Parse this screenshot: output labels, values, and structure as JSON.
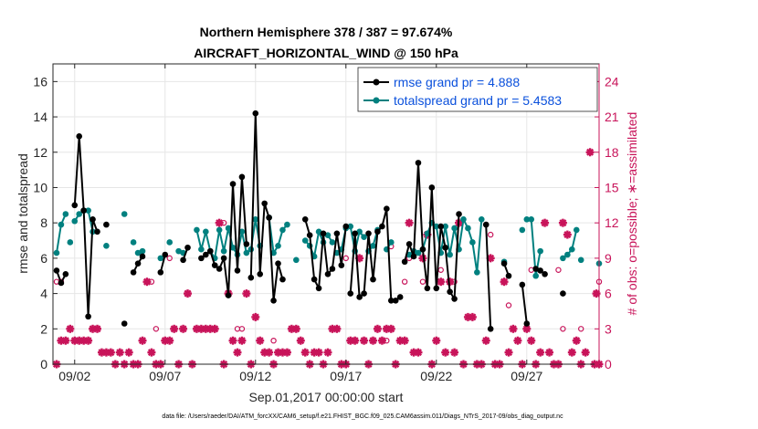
{
  "chart_data": {
    "type": "line",
    "title_line1": "Northern Hemisphere 378 / 387 = 97.674%",
    "title_line2": "AIRCRAFT_HORIZONTAL_WIND @ 150 hPa",
    "xlabel": "Sep.01,2017 00:00:00 start",
    "ylabel_left": "rmse and totalspread",
    "ylabel_right": "# of obs: o=possible; ∗=assimilated",
    "footer": "data file: /Users/raeder/DAI/ATM_forcXX/CAM6_setup/f.e21.FHIST_BGC.f09_025.CAM6assim.011/Diags_NTrS_2017-09/obs_diag_output.nc",
    "xlim": [
      0.8,
      31.0
    ],
    "ylim": [
      0,
      17
    ],
    "ylim_right": [
      0,
      25.5
    ],
    "x_ticks": [
      2,
      7,
      12,
      17,
      22,
      27
    ],
    "x_tick_labels": [
      "09/02",
      "09/07",
      "09/12",
      "09/17",
      "09/22",
      "09/27"
    ],
    "y_ticks": [
      0,
      2,
      4,
      6,
      8,
      10,
      12,
      14,
      16
    ],
    "y_tick_labels": [
      "0",
      "2",
      "4",
      "6",
      "8",
      "10",
      "12",
      "14",
      "16"
    ],
    "y_right_ticks": [
      0,
      3,
      6,
      9,
      12,
      15,
      18,
      21,
      24
    ],
    "y_right_tick_labels": [
      "0",
      "3",
      "6",
      "9",
      "12",
      "15",
      "18",
      "21",
      "24"
    ],
    "legend": [
      {
        "label": "rmse grand pr = 4.888",
        "color": "#000000"
      },
      {
        "label": "totalspread grand pr = 5.4583",
        "color": "#00807f"
      }
    ],
    "colors": {
      "rmse": "#000000",
      "spread": "#00807f",
      "obs": "#c8145a"
    },
    "rmse_segments": [
      [
        [
          1.0,
          5.3
        ],
        [
          1.25,
          4.6
        ],
        [
          1.5,
          5.1
        ]
      ],
      [
        [
          2.0,
          9.0
        ],
        [
          2.25,
          12.9
        ],
        [
          2.5,
          8.7
        ],
        [
          2.75,
          2.7
        ],
        [
          3.0,
          8.2
        ],
        [
          3.25,
          7.5
        ]
      ],
      [
        [
          3.75,
          7.9
        ]
      ],
      [
        [
          4.75,
          2.3
        ]
      ],
      [
        [
          5.25,
          5.2
        ],
        [
          5.5,
          5.7
        ],
        [
          5.75,
          6.1
        ]
      ],
      [
        [
          6.75,
          5.2
        ],
        [
          7.0,
          6.2
        ]
      ],
      [
        [
          8.0,
          5.9
        ],
        [
          8.25,
          6.6
        ]
      ],
      [
        [
          9.0,
          6.0
        ],
        [
          9.25,
          6.2
        ],
        [
          9.5,
          6.4
        ],
        [
          9.75,
          5.6
        ],
        [
          10.0,
          5.4
        ],
        [
          10.25,
          6.0
        ],
        [
          10.5,
          3.9
        ],
        [
          10.75,
          10.2
        ],
        [
          11.0,
          5.3
        ],
        [
          11.25,
          10.6
        ],
        [
          11.5,
          6.8
        ]
      ],
      [
        [
          11.75,
          4.9
        ],
        [
          12.0,
          14.2
        ],
        [
          12.25,
          5.1
        ],
        [
          12.5,
          9.1
        ],
        [
          12.75,
          8.3
        ],
        [
          13.0,
          3.6
        ],
        [
          13.25,
          5.7
        ],
        [
          13.5,
          4.8
        ]
      ],
      [
        [
          14.75,
          8.2
        ],
        [
          15.0,
          7.3
        ],
        [
          15.25,
          4.8
        ],
        [
          15.5,
          4.3
        ],
        [
          15.75,
          7.4
        ],
        [
          16.0,
          5.1
        ],
        [
          16.25,
          5.4
        ],
        [
          16.5,
          7.4
        ],
        [
          16.75,
          5.6
        ],
        [
          17.0,
          7.8
        ]
      ],
      [
        [
          17.25,
          4.0
        ],
        [
          17.5,
          7.4
        ],
        [
          17.75,
          3.8
        ],
        [
          18.0,
          4.0
        ],
        [
          18.25,
          7.4
        ],
        [
          18.5,
          4.8
        ],
        [
          18.75,
          7.5
        ],
        [
          19.0,
          7.8
        ],
        [
          19.25,
          8.8
        ],
        [
          19.5,
          3.6
        ]
      ],
      [
        [
          19.75,
          3.6
        ],
        [
          20.0,
          3.8
        ]
      ],
      [
        [
          20.25,
          5.8
        ],
        [
          20.5,
          6.8
        ],
        [
          20.75,
          6.1
        ],
        [
          21.0,
          11.4
        ],
        [
          21.25,
          6.5
        ],
        [
          21.5,
          4.3
        ],
        [
          21.75,
          10.0
        ],
        [
          22.0,
          4.3
        ],
        [
          22.25,
          7.8
        ],
        [
          22.5,
          6.6
        ],
        [
          22.75,
          4.1
        ],
        [
          23.0,
          3.7
        ],
        [
          23.25,
          8.5
        ]
      ],
      [
        [
          24.75,
          7.9
        ],
        [
          25.0,
          2.0
        ]
      ],
      [
        [
          25.75,
          5.7
        ],
        [
          26.0,
          5.0
        ]
      ],
      [
        [
          26.75,
          4.5
        ],
        [
          27.0,
          2.3
        ]
      ],
      [
        [
          27.5,
          5.4
        ],
        [
          27.75,
          5.3
        ],
        [
          28.0,
          5.1
        ]
      ],
      [
        [
          29.0,
          4.0
        ]
      ]
    ],
    "spread_segments": [
      [
        [
          1.0,
          6.3
        ],
        [
          1.25,
          7.9
        ],
        [
          1.5,
          8.5
        ]
      ],
      [
        [
          1.75,
          6.9
        ]
      ],
      [
        [
          2.0,
          8.1
        ],
        [
          2.25,
          8.5
        ],
        [
          2.5,
          8.7
        ],
        [
          2.75,
          8.7
        ],
        [
          3.0,
          7.5
        ]
      ],
      [
        [
          3.75,
          6.7
        ]
      ],
      [
        [
          4.75,
          8.5
        ]
      ],
      [
        [
          5.25,
          6.9
        ]
      ],
      [
        [
          5.5,
          6.3
        ],
        [
          5.75,
          6.4
        ]
      ],
      [
        [
          6.75,
          6.0
        ]
      ],
      [
        [
          7.25,
          6.9
        ]
      ],
      [
        [
          7.75,
          6.4
        ],
        [
          8.0,
          6.3
        ]
      ],
      [
        [
          8.75,
          7.6
        ],
        [
          9.0,
          6.5
        ],
        [
          9.25,
          7.5
        ],
        [
          9.5,
          6.4
        ],
        [
          9.75,
          6.0
        ],
        [
          10.0,
          7.6
        ],
        [
          10.25,
          6.4
        ],
        [
          10.5,
          7.7
        ],
        [
          10.75,
          6.6
        ],
        [
          11.0,
          6.2
        ],
        [
          11.25,
          7.5
        ],
        [
          11.5,
          6.3
        ],
        [
          11.75,
          6.5
        ],
        [
          12.0,
          8.2
        ],
        [
          12.25,
          6.7
        ]
      ],
      [
        [
          12.75,
          8.3
        ],
        [
          13.0,
          6.3
        ],
        [
          13.25,
          6.7
        ],
        [
          13.5,
          7.6
        ],
        [
          13.75,
          7.9
        ]
      ],
      [
        [
          14.25,
          5.9
        ]
      ],
      [
        [
          14.75,
          7.0
        ],
        [
          15.0,
          6.7
        ],
        [
          15.25,
          6.1
        ],
        [
          15.5,
          7.5
        ],
        [
          15.75,
          6.9
        ]
      ],
      [
        [
          16.0,
          7.3
        ],
        [
          16.25,
          6.9
        ]
      ],
      [
        [
          16.5,
          6.3
        ],
        [
          16.75,
          6.5
        ],
        [
          17.0,
          7.7
        ],
        [
          17.25,
          7.8
        ],
        [
          17.5,
          6.4
        ],
        [
          17.75,
          7.5
        ],
        [
          18.0,
          7.2
        ]
      ],
      [
        [
          18.25,
          6.4
        ],
        [
          18.5,
          6.7
        ],
        [
          18.75,
          7.6
        ]
      ],
      [
        [
          19.25,
          6.5
        ],
        [
          19.5,
          6.9
        ]
      ],
      [
        [
          20.5,
          6.2
        ]
      ],
      [
        [
          20.75,
          6.4
        ],
        [
          21.0,
          6.3
        ],
        [
          21.25,
          6.5
        ],
        [
          21.5,
          7.4
        ],
        [
          21.75,
          8.0
        ],
        [
          22.0,
          7.8
        ],
        [
          22.25,
          6.3
        ],
        [
          22.5,
          7.8
        ],
        [
          22.75,
          6.2
        ],
        [
          23.0,
          7.7
        ],
        [
          23.25,
          6.5
        ],
        [
          23.5,
          8.2
        ],
        [
          23.75,
          7.7
        ],
        [
          24.0,
          6.9
        ],
        [
          24.25,
          5.2
        ],
        [
          24.5,
          8.2
        ]
      ],
      [
        [
          25.75,
          5.8
        ]
      ],
      [
        [
          26.75,
          7.6
        ]
      ],
      [
        [
          27.0,
          8.2
        ],
        [
          27.25,
          8.2
        ],
        [
          27.5,
          5.0
        ],
        [
          27.75,
          6.4
        ]
      ],
      [
        [
          29.0,
          6.0
        ],
        [
          29.25,
          6.2
        ],
        [
          29.5,
          6.5
        ],
        [
          29.75,
          7.6
        ]
      ],
      [
        [
          30.0,
          5.9
        ]
      ],
      [
        [
          31.0,
          5.7
        ]
      ]
    ],
    "assimilated_counts": [
      [
        1.0,
        0
      ],
      [
        1.25,
        2
      ],
      [
        1.5,
        2
      ],
      [
        1.75,
        3
      ],
      [
        2.0,
        2
      ],
      [
        2.25,
        2
      ],
      [
        2.5,
        2
      ],
      [
        2.75,
        2
      ],
      [
        3.0,
        3
      ],
      [
        3.25,
        3
      ],
      [
        3.5,
        1
      ],
      [
        3.75,
        1
      ],
      [
        4.0,
        1
      ],
      [
        4.25,
        0
      ],
      [
        4.5,
        1
      ],
      [
        4.75,
        0
      ],
      [
        5.0,
        1
      ],
      [
        5.25,
        0
      ],
      [
        5.5,
        0
      ],
      [
        5.75,
        2
      ],
      [
        6.0,
        7
      ],
      [
        6.25,
        1
      ],
      [
        6.5,
        0
      ],
      [
        6.75,
        0
      ],
      [
        7.0,
        2
      ],
      [
        7.25,
        2
      ],
      [
        7.5,
        3
      ],
      [
        7.75,
        0
      ],
      [
        8.0,
        3
      ],
      [
        8.25,
        6
      ],
      [
        8.5,
        0
      ],
      [
        8.75,
        3
      ],
      [
        9.0,
        3
      ],
      [
        9.25,
        3
      ],
      [
        9.5,
        3
      ],
      [
        9.75,
        3
      ],
      [
        10.0,
        12
      ],
      [
        10.25,
        0
      ],
      [
        10.5,
        6
      ],
      [
        10.75,
        2
      ],
      [
        11.0,
        1
      ],
      [
        11.25,
        2
      ],
      [
        11.5,
        6
      ],
      [
        11.75,
        0
      ],
      [
        12.0,
        4
      ],
      [
        12.25,
        2
      ],
      [
        12.5,
        1
      ],
      [
        12.75,
        1
      ],
      [
        13.0,
        0
      ],
      [
        13.25,
        1
      ],
      [
        13.5,
        1
      ],
      [
        13.75,
        1
      ],
      [
        14.0,
        3
      ],
      [
        14.25,
        3
      ],
      [
        14.5,
        2
      ],
      [
        14.75,
        1
      ],
      [
        15.0,
        0
      ],
      [
        15.25,
        1
      ],
      [
        15.5,
        1
      ],
      [
        15.75,
        0
      ],
      [
        16.0,
        1
      ],
      [
        16.25,
        3
      ],
      [
        16.5,
        3
      ],
      [
        16.75,
        0
      ],
      [
        17.0,
        0
      ],
      [
        17.25,
        2
      ],
      [
        17.5,
        2
      ],
      [
        17.75,
        9
      ],
      [
        18.0,
        2
      ],
      [
        18.25,
        0
      ],
      [
        18.5,
        2
      ],
      [
        18.75,
        3
      ],
      [
        19.0,
        2
      ],
      [
        19.25,
        3
      ],
      [
        19.5,
        3
      ],
      [
        19.75,
        0
      ],
      [
        20.0,
        2
      ],
      [
        20.25,
        2
      ],
      [
        20.5,
        12
      ],
      [
        20.75,
        1
      ],
      [
        21.0,
        1
      ],
      [
        21.25,
        9
      ],
      [
        21.5,
        11
      ],
      [
        21.75,
        0
      ],
      [
        22.0,
        2
      ],
      [
        22.25,
        7
      ],
      [
        22.5,
        1
      ],
      [
        22.75,
        7
      ],
      [
        23.0,
        1
      ],
      [
        23.25,
        12
      ],
      [
        23.5,
        0
      ],
      [
        23.75,
        4
      ],
      [
        24.0,
        4
      ],
      [
        24.25,
        0
      ],
      [
        24.5,
        0
      ],
      [
        24.75,
        2
      ],
      [
        25.0,
        9
      ],
      [
        25.25,
        0
      ],
      [
        25.5,
        0
      ],
      [
        25.75,
        7
      ],
      [
        26.0,
        1
      ],
      [
        26.25,
        3
      ],
      [
        26.5,
        2
      ],
      [
        26.75,
        0
      ],
      [
        27.0,
        3
      ],
      [
        27.25,
        2
      ],
      [
        27.5,
        0
      ],
      [
        27.75,
        1
      ],
      [
        28.0,
        12
      ],
      [
        28.25,
        1
      ],
      [
        28.5,
        0
      ],
      [
        28.75,
        0
      ],
      [
        29.0,
        12
      ],
      [
        29.25,
        11
      ],
      [
        29.5,
        1
      ],
      [
        29.75,
        2
      ],
      [
        30.0,
        0
      ],
      [
        30.25,
        1
      ],
      [
        30.5,
        18
      ],
      [
        30.75,
        0
      ],
      [
        30.85,
        6
      ],
      [
        31.0,
        0
      ]
    ],
    "possible_counts": [
      [
        1.0,
        7
      ],
      [
        1.25,
        7
      ],
      [
        3.25,
        3
      ],
      [
        6.25,
        7
      ],
      [
        6.5,
        3
      ],
      [
        7.25,
        9
      ],
      [
        9.75,
        3
      ],
      [
        10.25,
        12
      ],
      [
        10.75,
        2
      ],
      [
        11.0,
        3
      ],
      [
        11.25,
        3
      ],
      [
        13.0,
        2
      ],
      [
        13.25,
        1
      ],
      [
        16.5,
        3
      ],
      [
        17.0,
        9
      ],
      [
        17.75,
        9
      ],
      [
        19.25,
        2
      ],
      [
        19.5,
        10
      ],
      [
        20.25,
        7
      ],
      [
        20.5,
        9
      ],
      [
        21.0,
        1
      ],
      [
        21.25,
        7
      ],
      [
        22.25,
        8
      ],
      [
        23.0,
        7
      ],
      [
        25.0,
        11
      ],
      [
        26.0,
        5
      ],
      [
        27.25,
        8
      ],
      [
        28.75,
        8
      ],
      [
        29.0,
        3
      ],
      [
        30.0,
        3
      ],
      [
        30.25,
        1
      ],
      [
        30.5,
        18
      ],
      [
        31.0,
        7
      ]
    ]
  }
}
